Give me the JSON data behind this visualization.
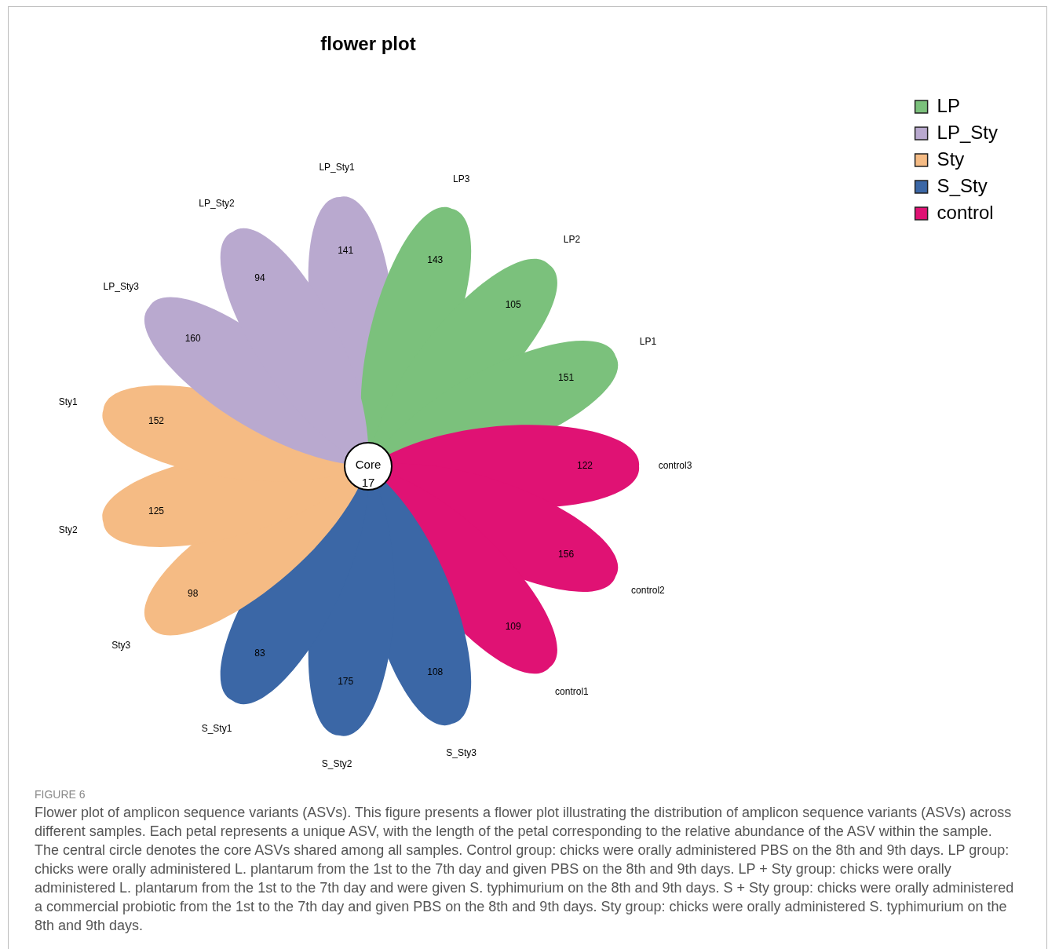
{
  "chart_data": {
    "type": "other",
    "title": "flower plot",
    "categories": [
      "LP_Sty1",
      "LP3",
      "LP2",
      "LP1",
      "control3",
      "control2",
      "control1",
      "S_Sty3",
      "S_Sty2",
      "S_Sty1",
      "Sty3",
      "Sty2",
      "Sty1",
      "LP_Sty3",
      "LP_Sty2"
    ],
    "series": [
      {
        "name": "LP",
        "color": "#7bc17c",
        "values": [
          null,
          143,
          105,
          151,
          null,
          null,
          null,
          null,
          null,
          null,
          null,
          null,
          null,
          null,
          null
        ]
      },
      {
        "name": "LP_Sty",
        "color": "#b9a9cf",
        "values": [
          141,
          null,
          null,
          null,
          null,
          null,
          null,
          null,
          null,
          null,
          null,
          null,
          null,
          160,
          94
        ]
      },
      {
        "name": "Sty",
        "color": "#f5bb84",
        "values": [
          null,
          null,
          null,
          null,
          null,
          null,
          null,
          null,
          null,
          null,
          98,
          125,
          152,
          null,
          null
        ]
      },
      {
        "name": "S_Sty",
        "color": "#3b67a6",
        "values": [
          null,
          null,
          null,
          null,
          null,
          null,
          null,
          108,
          175,
          83,
          null,
          null,
          null,
          null,
          null
        ]
      },
      {
        "name": "control",
        "color": "#e01274",
        "values": [
          null,
          null,
          null,
          null,
          122,
          156,
          109,
          null,
          null,
          null,
          null,
          null,
          null,
          null,
          null
        ]
      }
    ],
    "data_labels": true,
    "legend": "top right",
    "annotations": [
      "Core",
      "17",
      "FIGURE 6",
      "Flower plot of amplicon sequence variants (ASVs). This figure presents a flower plot illustrating the distribution of amplicon sequence variants (ASVs) across different samples. Each petal represents a unique ASV, with the length of the petal corresponding to the relative abundance of the ASV within the sample. The central circle denotes the core ASVs shared among all samples. Control group: chicks were orally administered PBS on the 8th and 9th days. LP group: chicks were orally administered L. plantarum from the 1st to the 7th day and given PBS on the 8th and 9th days. LP + Sty group: chicks were orally administered L. plantarum from the 1st to the 7th day and were given S. typhimurium on the 8th and 9th days. S + Sty group: chicks were orally administered a commercial probiotic from the 1st to the 7th day and given PBS on the 8th and 9th days. Sty group: chicks were orally administered S. typhimurium on the 8th and 9th days."
    ]
  }
}
